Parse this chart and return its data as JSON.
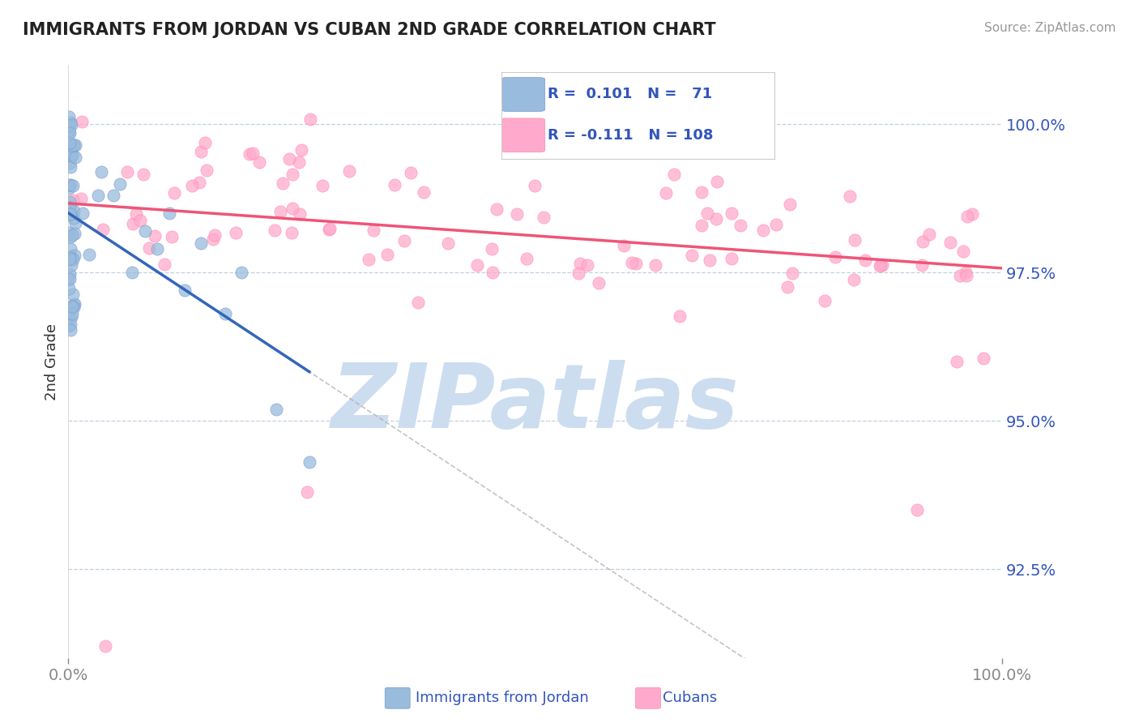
{
  "title": "IMMIGRANTS FROM JORDAN VS CUBAN 2ND GRADE CORRELATION CHART",
  "source": "Source: ZipAtlas.com",
  "ylabel": "2nd Grade",
  "yticks": [
    92.5,
    95.0,
    97.5,
    100.0
  ],
  "ytick_labels": [
    "92.5%",
    "95.0%",
    "97.5%",
    "100.0%"
  ],
  "xlim": [
    0.0,
    100.0
  ],
  "ylim": [
    91.0,
    101.0
  ],
  "blue_color": "#99BBDD",
  "pink_color": "#FFAACC",
  "blue_edge": "#7799CC",
  "pink_edge": "#FF88AA",
  "trend_blue": "#3366BB",
  "trend_pink": "#EE5577",
  "trend_dashed": "#AAAAAA",
  "watermark_color": "#CCDDF0",
  "legend_text_color": "#3355BB",
  "tick_color": "#3355BB",
  "grid_color": "#BBCCDD",
  "source_color": "#999999",
  "title_color": "#222222"
}
